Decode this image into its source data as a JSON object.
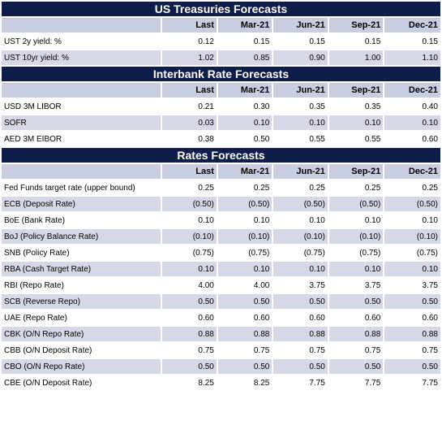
{
  "columns": [
    "Last",
    "Mar-21",
    "Jun-21",
    "Sep-21",
    "Dec-21"
  ],
  "sections": [
    {
      "title": "US Treasuries Forecasts",
      "rows": [
        {
          "label": "UST 2y yield: %",
          "values": [
            "0.12",
            "0.15",
            "0.15",
            "0.15",
            "0.15"
          ]
        },
        {
          "label": "UST 10yr yield: %",
          "values": [
            "1.02",
            "0.85",
            "0.90",
            "1.00",
            "1.10"
          ]
        }
      ]
    },
    {
      "title": "Interbank Rate Forecasts",
      "rows": [
        {
          "label": "USD 3M LIBOR",
          "values": [
            "0.21",
            "0.30",
            "0.35",
            "0.35",
            "0.40"
          ]
        },
        {
          "label": "SOFR",
          "values": [
            "0.03",
            "0.10",
            "0.10",
            "0.10",
            "0.10"
          ]
        },
        {
          "label": "AED 3M EIBOR",
          "values": [
            "0.38",
            "0.50",
            "0.55",
            "0.55",
            "0.60"
          ]
        }
      ]
    },
    {
      "title": "Rates Forecasts",
      "rows": [
        {
          "label": "Fed Funds target rate (upper bound)",
          "values": [
            "0.25",
            "0.25",
            "0.25",
            "0.25",
            "0.25"
          ]
        },
        {
          "label": "ECB (Deposit Rate)",
          "values": [
            "(0.50)",
            "(0.50)",
            "(0.50)",
            "(0.50)",
            "(0.50)"
          ]
        },
        {
          "label": "BoE (Bank Rate)",
          "values": [
            "0.10",
            "0.10",
            "0.10",
            "0.10",
            "0.10"
          ]
        },
        {
          "label": "BoJ (Policy Balance Rate)",
          "values": [
            "(0.10)",
            "(0.10)",
            "(0.10)",
            "(0.10)",
            "(0.10)"
          ]
        },
        {
          "label": "SNB (Policy Rate)",
          "values": [
            "(0.75)",
            "(0.75)",
            "(0.75)",
            "(0.75)",
            "(0.75)"
          ]
        },
        {
          "label": "RBA (Cash Target Rate)",
          "values": [
            "0.10",
            "0.10",
            "0.10",
            "0.10",
            "0.10"
          ]
        },
        {
          "label": "RBI (Repo Rate)",
          "values": [
            "4.00",
            "4.00",
            "3.75",
            "3.75",
            "3.75"
          ]
        },
        {
          "label": "SCB (Reverse Repo)",
          "values": [
            "0.50",
            "0.50",
            "0.50",
            "0.50",
            "0.50"
          ]
        },
        {
          "label": "UAE (Repo Rate)",
          "values": [
            "0.60",
            "0.60",
            "0.60",
            "0.60",
            "0.60"
          ]
        },
        {
          "label": "CBK (O/N Repo Rate)",
          "values": [
            "0.88",
            "0.88",
            "0.88",
            "0.88",
            "0.88"
          ]
        },
        {
          "label": "CBB (O/N Deposit Rate)",
          "values": [
            "0.75",
            "0.75",
            "0.75",
            "0.75",
            "0.75"
          ]
        },
        {
          "label": "CBO (O/N Repo Rate)",
          "values": [
            "0.50",
            "0.50",
            "0.50",
            "0.50",
            "0.50"
          ]
        },
        {
          "label": "CBE (O/N Deposit Rate)",
          "values": [
            "8.25",
            "8.25",
            "7.75",
            "7.75",
            "7.75"
          ]
        }
      ]
    }
  ],
  "colors": {
    "section_header_bg": "#0f1e49",
    "column_header_bg": "#c9cde0",
    "shaded_row_bg": "#d5d8e6"
  }
}
